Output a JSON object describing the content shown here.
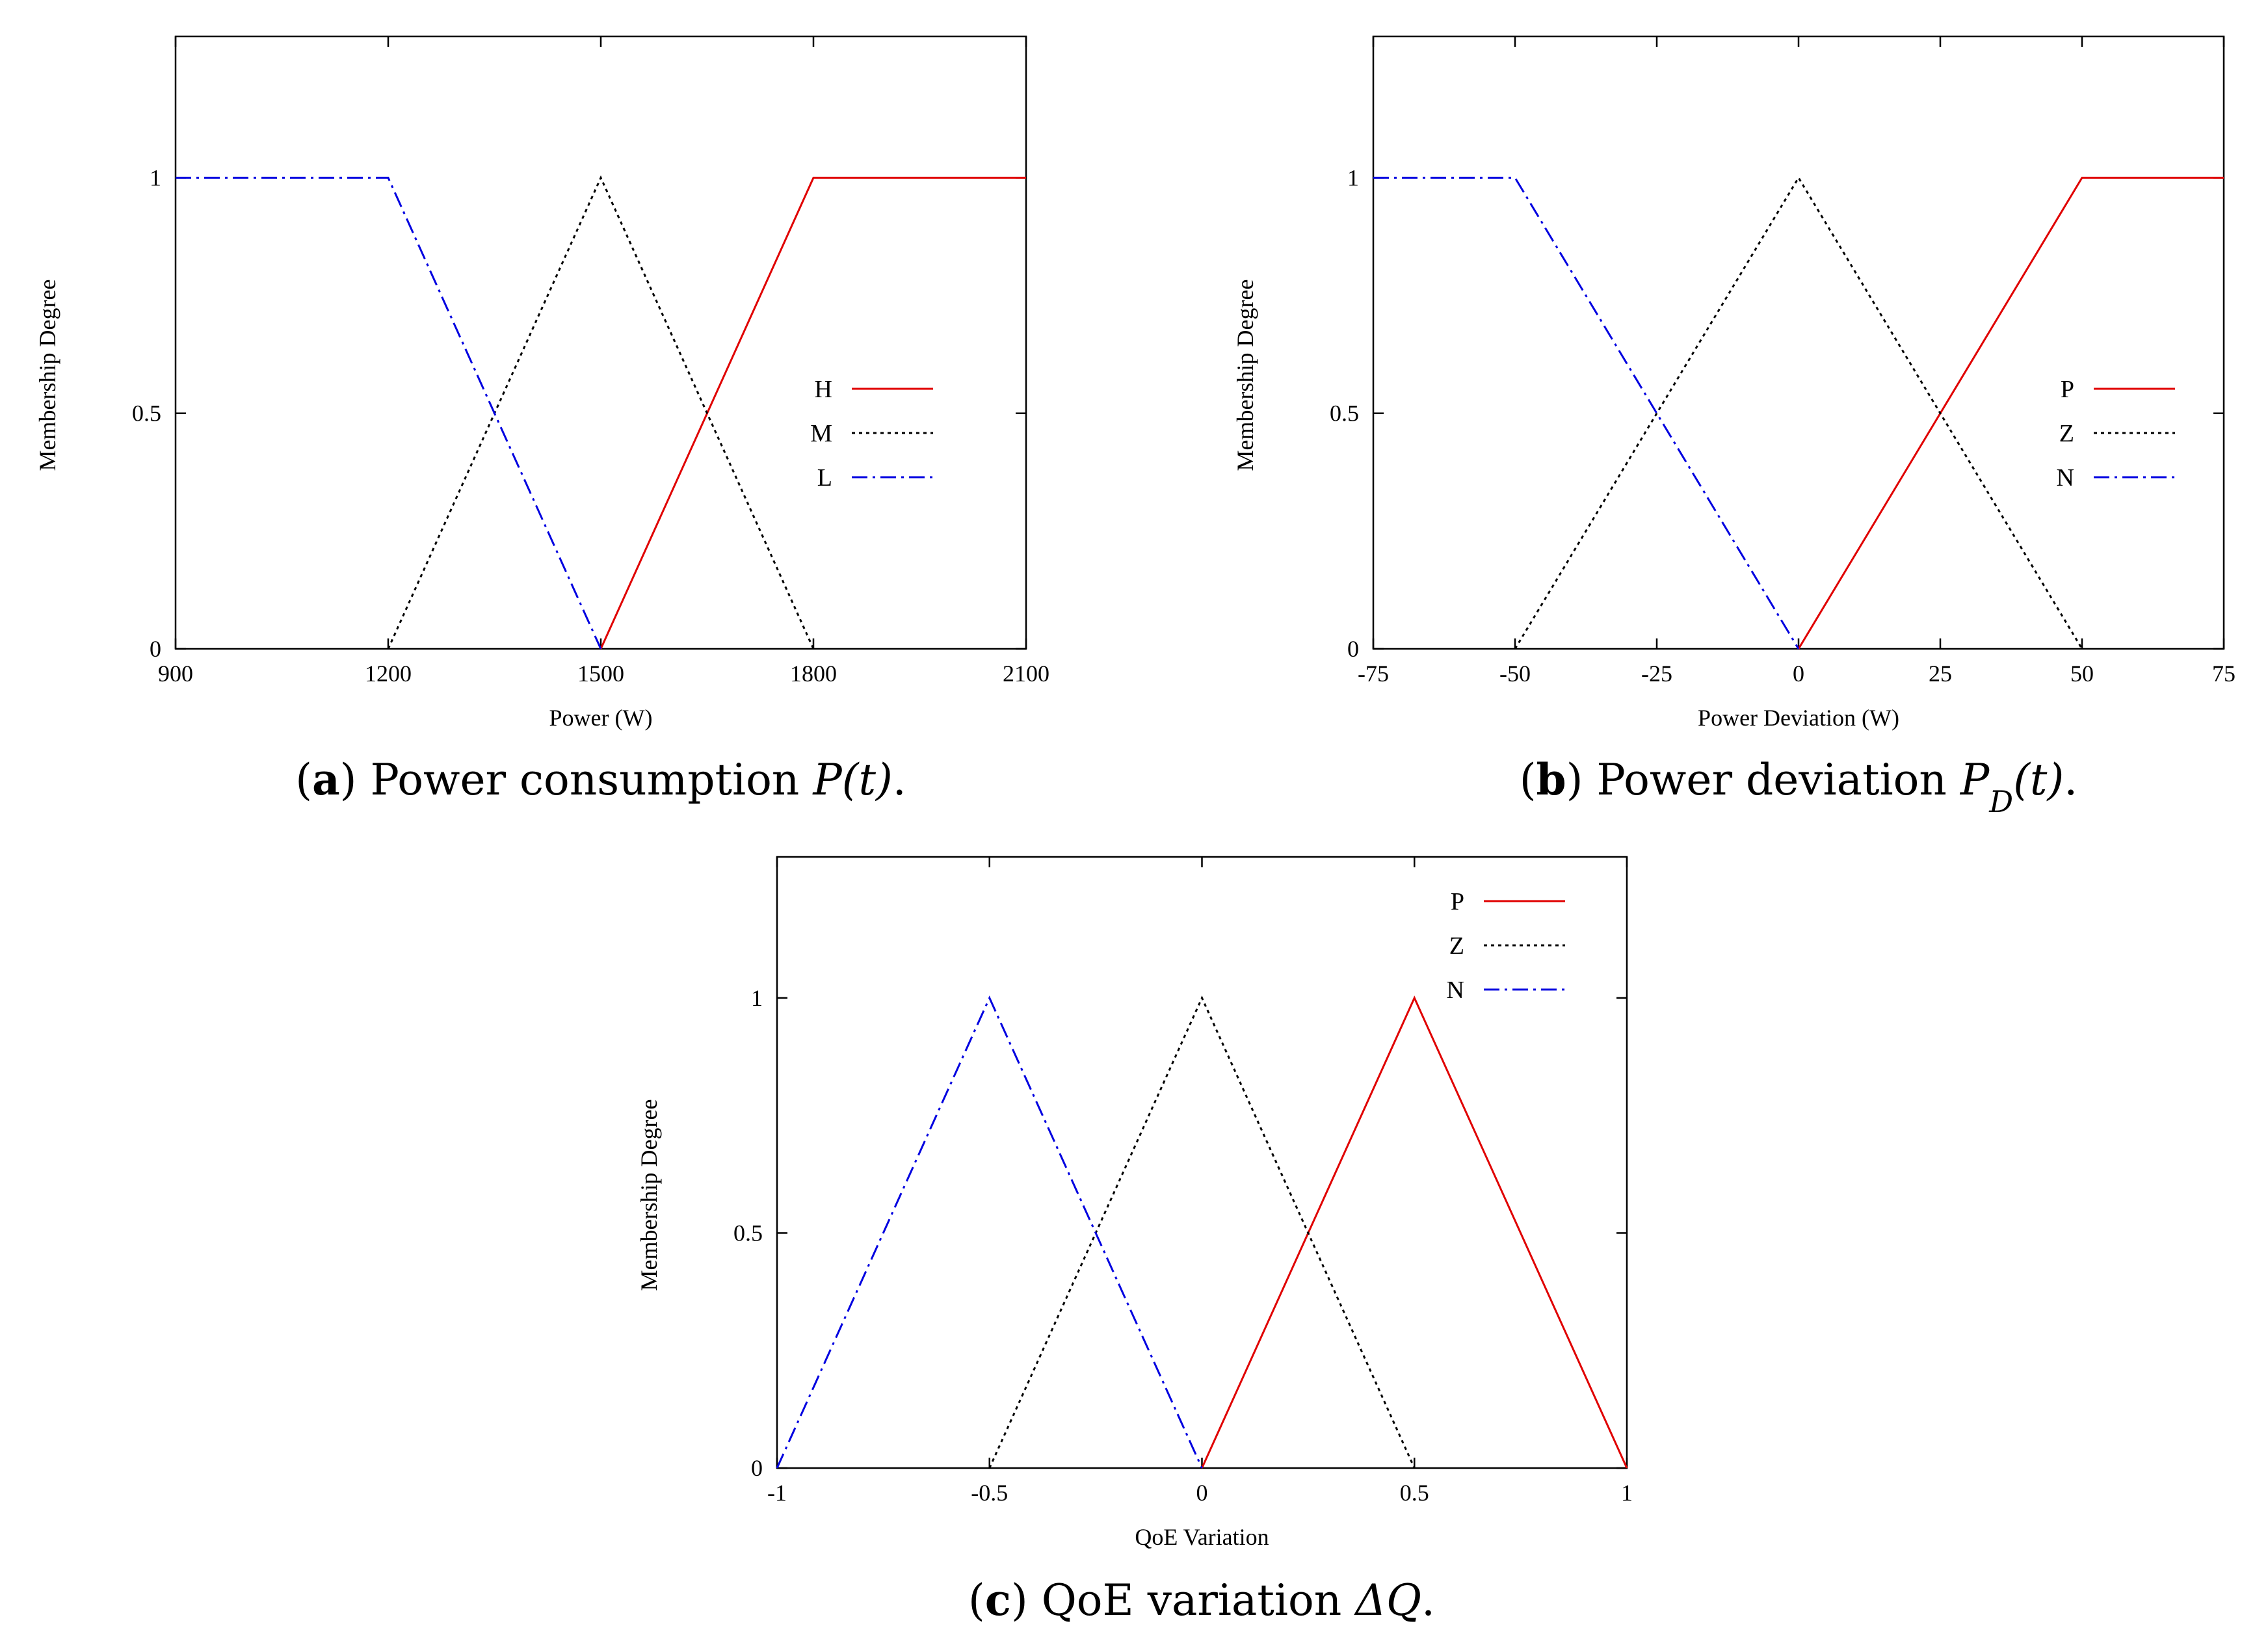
{
  "chart_data": [
    {
      "type": "line",
      "caption": {
        "open": "(",
        "letter": "a",
        "close": ")",
        "text": " Power consumption ",
        "math": "P",
        "math_tail": "(t)",
        "end": "."
      },
      "xlabel": "Power (W)",
      "ylabel": "Membership Degree",
      "xlim": [
        900,
        2100
      ],
      "ylim": [
        0,
        1.3
      ],
      "xticks": [
        900,
        1200,
        1500,
        1800,
        2100
      ],
      "xtick_labels": [
        "900",
        "1200",
        "1500",
        "1800",
        "2100"
      ],
      "yticks": [
        0,
        0.5,
        1
      ],
      "ytick_labels": [
        "0",
        "0.5",
        "1"
      ],
      "legend_position": "right",
      "series": [
        {
          "name": "H",
          "color": "#e00000",
          "dash": "solid",
          "x": [
            1500,
            1800,
            2100
          ],
          "y": [
            0,
            1,
            1
          ]
        },
        {
          "name": "M",
          "color": "#000000",
          "dash": "dotted",
          "x": [
            1200,
            1500,
            1800
          ],
          "y": [
            0,
            1,
            0
          ]
        },
        {
          "name": "L",
          "color": "#0000e0",
          "dash": "dashdot",
          "x": [
            900,
            1200,
            1500
          ],
          "y": [
            1,
            1,
            0
          ]
        }
      ]
    },
    {
      "type": "line",
      "caption": {
        "open": "(",
        "letter": "b",
        "close": ")",
        "text": " Power deviation ",
        "math": "P",
        "math_sub": "D",
        "math_tail": "(t)",
        "end": "."
      },
      "xlabel": "Power Deviation (W)",
      "ylabel": "Membership Degree",
      "xlim": [
        -75,
        75
      ],
      "ylim": [
        0,
        1.3
      ],
      "xticks": [
        -75,
        -50,
        -25,
        0,
        25,
        50,
        75
      ],
      "xtick_labels": [
        "-75",
        "-50",
        "-25",
        "0",
        "25",
        "50",
        "75"
      ],
      "yticks": [
        0,
        0.5,
        1
      ],
      "ytick_labels": [
        "0",
        "0.5",
        "1"
      ],
      "legend_position": "right",
      "series": [
        {
          "name": "P",
          "color": "#e00000",
          "dash": "solid",
          "x": [
            0,
            50,
            75
          ],
          "y": [
            0,
            1,
            1
          ]
        },
        {
          "name": "Z",
          "color": "#000000",
          "dash": "dotted",
          "x": [
            -50,
            0,
            50
          ],
          "y": [
            0,
            1,
            0
          ]
        },
        {
          "name": "N",
          "color": "#0000e0",
          "dash": "dashdot",
          "x": [
            -75,
            -50,
            0
          ],
          "y": [
            1,
            1,
            0
          ]
        }
      ]
    },
    {
      "type": "line",
      "caption": {
        "open": "(",
        "letter": "c",
        "close": ")",
        "text": " QoE variation ",
        "math": "ΔQ",
        "end": "."
      },
      "xlabel": "QoE Variation",
      "ylabel": "Membership Degree",
      "xlim": [
        -1,
        1
      ],
      "ylim": [
        0,
        1.3
      ],
      "xticks": [
        -1,
        -0.5,
        0,
        0.5,
        1
      ],
      "xtick_labels": [
        "-1",
        "-0.5",
        "0",
        "0.5",
        "1"
      ],
      "yticks": [
        0,
        0.5,
        1
      ],
      "ytick_labels": [
        "0",
        "0.5",
        "1"
      ],
      "legend_position": "top-right",
      "series": [
        {
          "name": "P",
          "color": "#e00000",
          "dash": "solid",
          "x": [
            0,
            0.5,
            1
          ],
          "y": [
            0,
            1,
            0
          ]
        },
        {
          "name": "Z",
          "color": "#000000",
          "dash": "dotted",
          "x": [
            -0.5,
            0,
            0.5
          ],
          "y": [
            0,
            1,
            0
          ]
        },
        {
          "name": "N",
          "color": "#0000e0",
          "dash": "dashdot",
          "x": [
            -1,
            -0.5,
            0
          ],
          "y": [
            0,
            1,
            0
          ]
        }
      ]
    }
  ]
}
